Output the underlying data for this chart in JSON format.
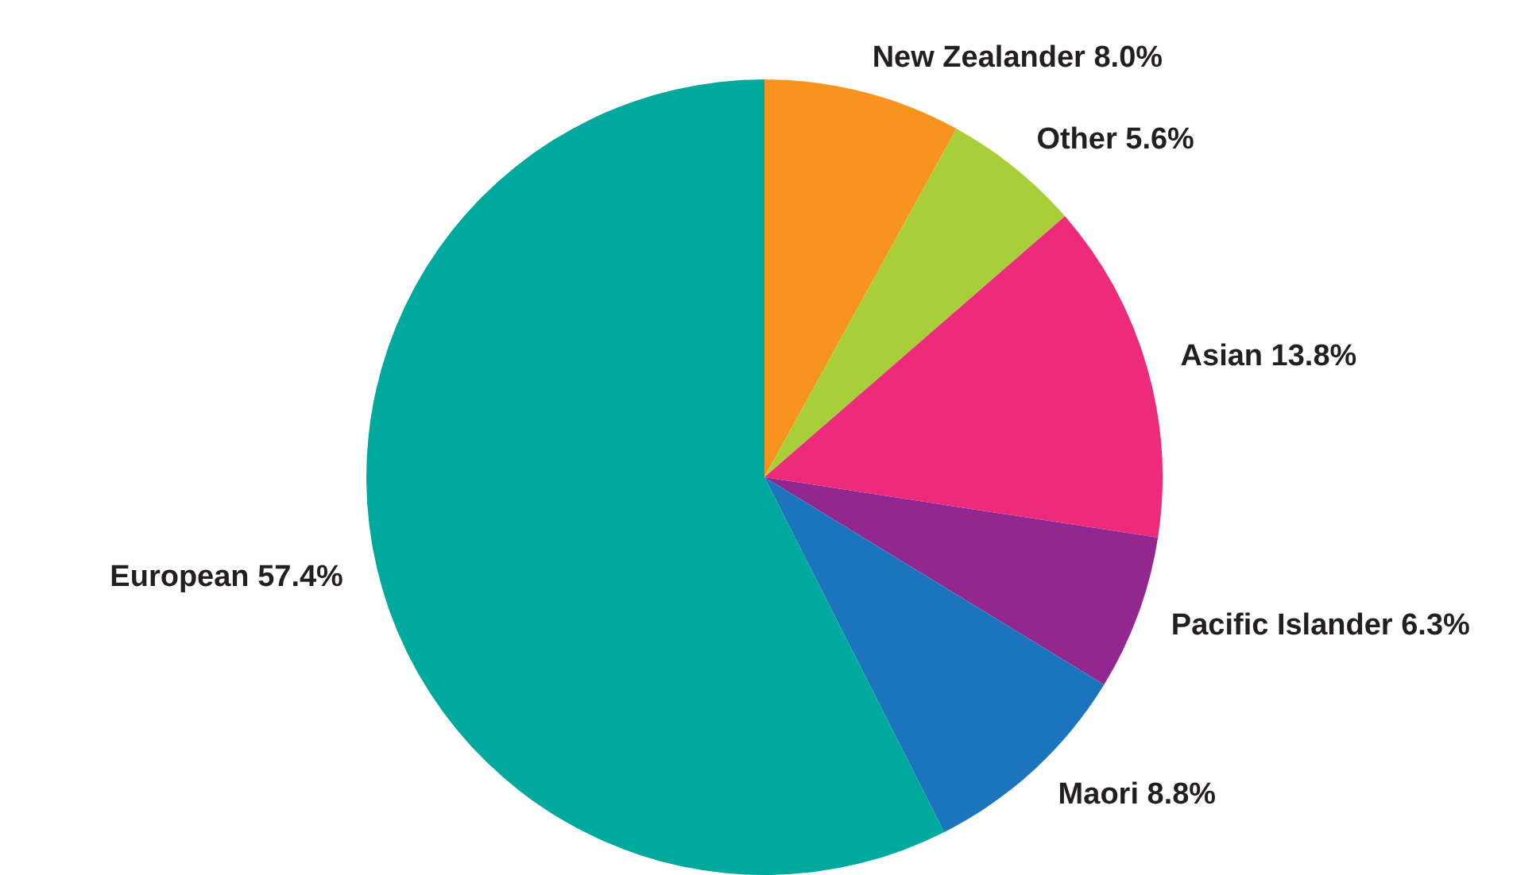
{
  "chart_data": {
    "type": "pie",
    "categories": [
      "New Zealander",
      "Other",
      "Asian",
      "Pacific Islander",
      "Maori",
      "European"
    ],
    "values": [
      8.0,
      5.6,
      13.8,
      6.3,
      8.8,
      57.4
    ],
    "colors": [
      "#f7941d",
      "#a8cf3a",
      "#ee2a7b",
      "#92278f",
      "#1c75bc",
      "#00a99d"
    ],
    "value_labels": [
      "8.0%",
      "5.6%",
      "13.8%",
      "6.3%",
      "8.8%",
      "57.4%"
    ],
    "legend": false
  }
}
